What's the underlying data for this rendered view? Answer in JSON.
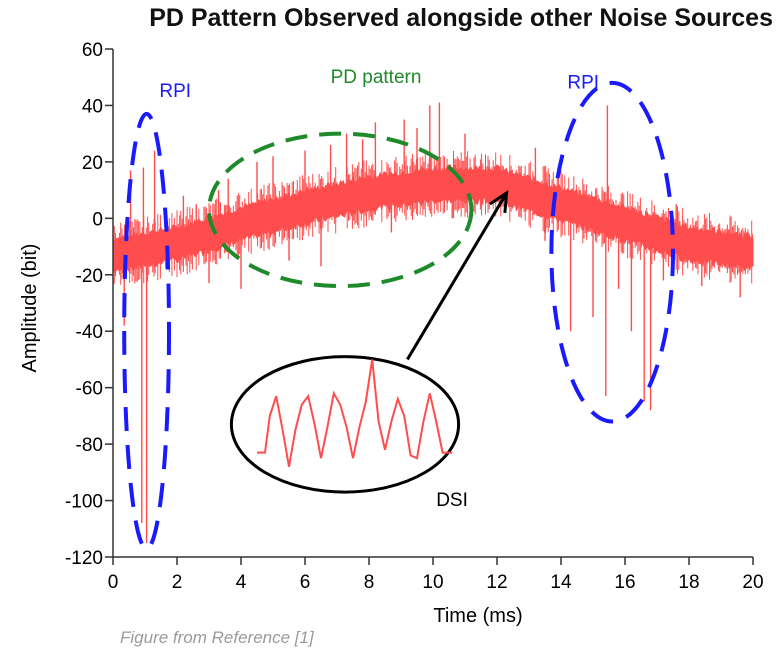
{
  "title": "PD Pattern Observed alongside other Noise Sources",
  "caption": "Figure from Reference [1]",
  "colors": {
    "signal": "#ff4d4d",
    "rpi": "#1a1aff",
    "pd": "#1f8a2a",
    "dsi": "#000000",
    "axis": "#333333"
  },
  "chart_data": {
    "type": "line",
    "xlabel": "Time (ms)",
    "ylabel": "Amplitude (bit)",
    "xlim": [
      0,
      20
    ],
    "ylim": [
      -120,
      60
    ],
    "xticks": [
      0,
      2,
      4,
      6,
      8,
      10,
      12,
      14,
      16,
      18,
      20
    ],
    "yticks": [
      60,
      40,
      20,
      0,
      -20,
      -40,
      -60,
      -80,
      -100,
      -120
    ],
    "grid": false,
    "baseline": [
      {
        "x": 0,
        "y": -13
      },
      {
        "x": 2,
        "y": -9
      },
      {
        "x": 4,
        "y": -2
      },
      {
        "x": 6,
        "y": 4
      },
      {
        "x": 8,
        "y": 9
      },
      {
        "x": 10,
        "y": 12
      },
      {
        "x": 12,
        "y": 12
      },
      {
        "x": 14,
        "y": 5
      },
      {
        "x": 16,
        "y": -2
      },
      {
        "x": 18,
        "y": -9
      },
      {
        "x": 20,
        "y": -12
      }
    ],
    "band_halfwidth": 6,
    "spikes": [
      {
        "x": 0.35,
        "y": -38
      },
      {
        "x": 0.55,
        "y": 17
      },
      {
        "x": 0.9,
        "y": -108
      },
      {
        "x": 0.95,
        "y": 18
      },
      {
        "x": 1.05,
        "y": -115
      },
      {
        "x": 1.3,
        "y": 24
      },
      {
        "x": 2.2,
        "y": 8
      },
      {
        "x": 2.6,
        "y": 5
      },
      {
        "x": 3.0,
        "y": -23
      },
      {
        "x": 3.3,
        "y": 10
      },
      {
        "x": 3.6,
        "y": 14
      },
      {
        "x": 4.0,
        "y": -25
      },
      {
        "x": 4.5,
        "y": 20
      },
      {
        "x": 5.0,
        "y": 22
      },
      {
        "x": 5.5,
        "y": -15
      },
      {
        "x": 6.0,
        "y": 24
      },
      {
        "x": 6.5,
        "y": -17
      },
      {
        "x": 6.8,
        "y": 26
      },
      {
        "x": 7.3,
        "y": 30
      },
      {
        "x": 7.8,
        "y": 28
      },
      {
        "x": 8.2,
        "y": 34
      },
      {
        "x": 8.7,
        "y": -5
      },
      {
        "x": 9.1,
        "y": 35
      },
      {
        "x": 9.5,
        "y": 32
      },
      {
        "x": 9.9,
        "y": 40
      },
      {
        "x": 10.2,
        "y": 41
      },
      {
        "x": 10.6,
        "y": 0
      },
      {
        "x": 11.0,
        "y": 30
      },
      {
        "x": 13.2,
        "y": 25
      },
      {
        "x": 13.5,
        "y": -8
      },
      {
        "x": 14.3,
        "y": -40
      },
      {
        "x": 14.6,
        "y": 10
      },
      {
        "x": 15.0,
        "y": -35
      },
      {
        "x": 15.4,
        "y": -63
      },
      {
        "x": 15.45,
        "y": 40
      },
      {
        "x": 15.8,
        "y": -25
      },
      {
        "x": 16.2,
        "y": -40
      },
      {
        "x": 16.6,
        "y": -65
      },
      {
        "x": 16.8,
        "y": -68
      },
      {
        "x": 17.2,
        "y": -22
      },
      {
        "x": 17.6,
        "y": 5
      },
      {
        "x": 18.4,
        "y": -24
      },
      {
        "x": 19.0,
        "y": -15
      },
      {
        "x": 19.6,
        "y": -28
      }
    ],
    "annotations": [
      {
        "text": "RPI",
        "x": 1.45,
        "y": 43,
        "shape": "ellipse",
        "cx": 1.05,
        "cy": -40,
        "rx": 0.7,
        "ry": 77,
        "color_key": "rpi"
      },
      {
        "text": "PD pattern",
        "x": 6.8,
        "y": 48,
        "shape": "ellipse",
        "cx": 7.1,
        "cy": 3,
        "rx": 4.1,
        "ry": 27,
        "color_key": "pd"
      },
      {
        "text": "RPI",
        "x": 14.2,
        "y": 46,
        "shape": "ellipse",
        "cx": 15.6,
        "cy": -12,
        "rx": 1.9,
        "ry": 60,
        "color_key": "rpi"
      },
      {
        "text": "DSI",
        "x": 10.1,
        "y": -102,
        "shape": "ellipse",
        "cx": 7.25,
        "cy": -73,
        "rx": 3.55,
        "ry": 24,
        "color_key": "dsi"
      }
    ],
    "dsi_waveform": [
      {
        "x": 4.5,
        "y": -83
      },
      {
        "x": 4.75,
        "y": -83
      },
      {
        "x": 4.9,
        "y": -70
      },
      {
        "x": 5.1,
        "y": -63
      },
      {
        "x": 5.3,
        "y": -75
      },
      {
        "x": 5.5,
        "y": -88
      },
      {
        "x": 5.7,
        "y": -75
      },
      {
        "x": 5.9,
        "y": -66
      },
      {
        "x": 6.1,
        "y": -63
      },
      {
        "x": 6.3,
        "y": -73
      },
      {
        "x": 6.5,
        "y": -85
      },
      {
        "x": 6.7,
        "y": -74
      },
      {
        "x": 6.9,
        "y": -62
      },
      {
        "x": 7.1,
        "y": -66
      },
      {
        "x": 7.3,
        "y": -74
      },
      {
        "x": 7.5,
        "y": -85
      },
      {
        "x": 7.7,
        "y": -74
      },
      {
        "x": 7.9,
        "y": -65
      },
      {
        "x": 8.1,
        "y": -50
      },
      {
        "x": 8.3,
        "y": -72
      },
      {
        "x": 8.5,
        "y": -82
      },
      {
        "x": 8.7,
        "y": -72
      },
      {
        "x": 8.9,
        "y": -64
      },
      {
        "x": 9.1,
        "y": -70
      },
      {
        "x": 9.3,
        "y": -84
      },
      {
        "x": 9.5,
        "y": -85
      },
      {
        "x": 9.7,
        "y": -72
      },
      {
        "x": 9.9,
        "y": -62
      },
      {
        "x": 10.1,
        "y": -72
      },
      {
        "x": 10.3,
        "y": -83
      },
      {
        "x": 10.6,
        "y": -83
      }
    ],
    "arrow": {
      "x1": 9.2,
      "y1": -50,
      "x2": 12.3,
      "y2": 9
    }
  }
}
